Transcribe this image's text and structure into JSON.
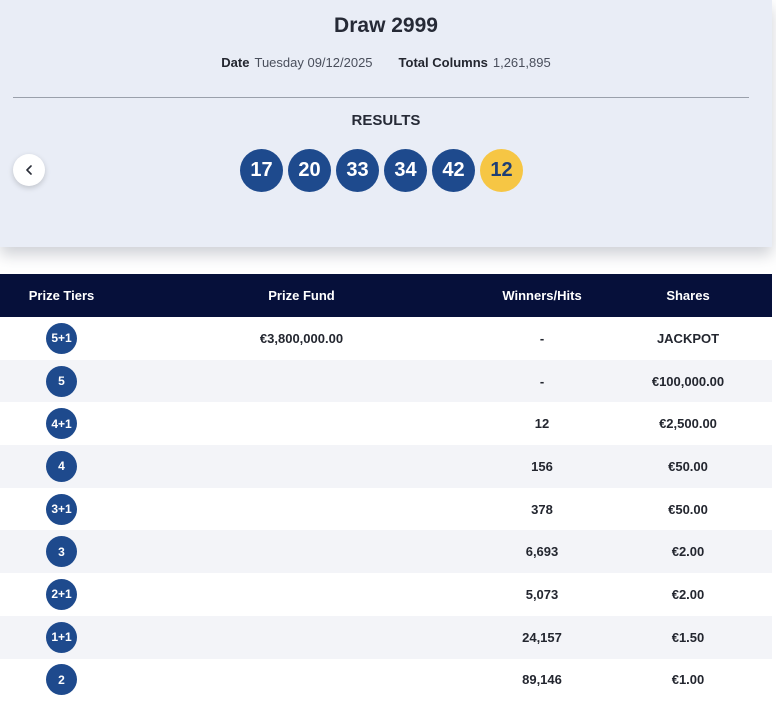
{
  "draw": {
    "title": "Draw 2999",
    "date_label": "Date",
    "date_value": "Tuesday 09/12/2025",
    "columns_label": "Total Columns",
    "columns_value": "1,261,895",
    "results_label": "RESULTS",
    "numbers": [
      "17",
      "20",
      "33",
      "34",
      "42"
    ],
    "bonus": "12"
  },
  "colors": {
    "ball": "#1e4a8d",
    "bonus": "#f6c644",
    "header": "#06103a"
  },
  "table": {
    "headers": [
      "Prize Tiers",
      "Prize Fund",
      "Winners/Hits",
      "Shares"
    ],
    "rows": [
      {
        "tier": "5+1",
        "fund": "€3,800,000.00",
        "winners": "-",
        "shares": "JACKPOT"
      },
      {
        "tier": "5",
        "fund": "",
        "winners": "-",
        "shares": "€100,000.00"
      },
      {
        "tier": "4+1",
        "fund": "",
        "winners": "12",
        "shares": "€2,500.00"
      },
      {
        "tier": "4",
        "fund": "",
        "winners": "156",
        "shares": "€50.00"
      },
      {
        "tier": "3+1",
        "fund": "",
        "winners": "378",
        "shares": "€50.00"
      },
      {
        "tier": "3",
        "fund": "",
        "winners": "6,693",
        "shares": "€2.00"
      },
      {
        "tier": "2+1",
        "fund": "",
        "winners": "5,073",
        "shares": "€2.00"
      },
      {
        "tier": "1+1",
        "fund": "",
        "winners": "24,157",
        "shares": "€1.50"
      },
      {
        "tier": "2",
        "fund": "",
        "winners": "89,146",
        "shares": "€1.00"
      }
    ]
  }
}
